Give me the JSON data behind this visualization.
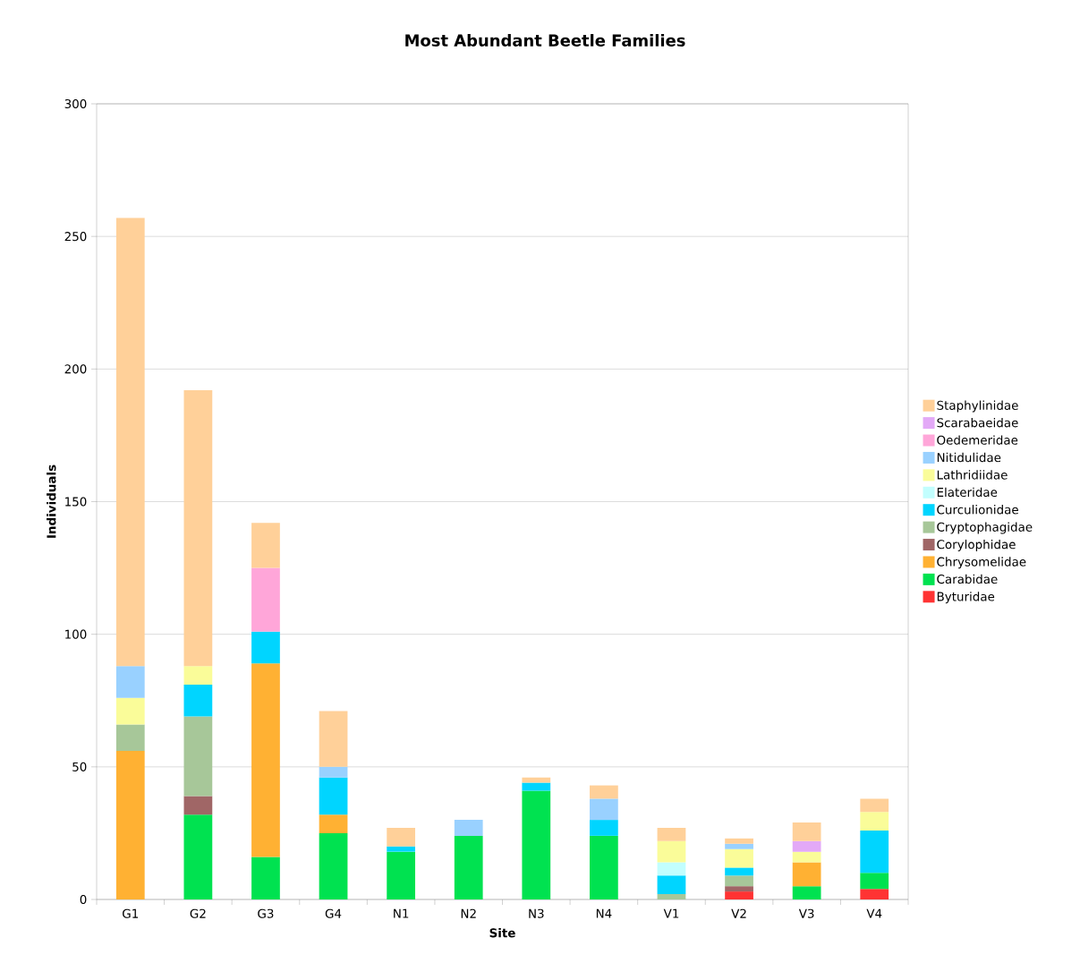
{
  "chart_data": {
    "type": "bar",
    "stacked": true,
    "title": "Most Abundant Beetle Families",
    "xlabel": "Site",
    "ylabel": "Individuals",
    "categories": [
      "G1",
      "G2",
      "G3",
      "G4",
      "N1",
      "N2",
      "N3",
      "N4",
      "V1",
      "V2",
      "V3",
      "V4"
    ],
    "ylim": [
      0,
      300
    ],
    "yticks": [
      0,
      50,
      100,
      150,
      200,
      250,
      300
    ],
    "grid": "y",
    "legend": "right",
    "series": [
      {
        "name": "Byturidae",
        "color": "#ff3333",
        "values": [
          null,
          null,
          null,
          null,
          null,
          null,
          null,
          null,
          null,
          3,
          null,
          4
        ]
      },
      {
        "name": "Carabidae",
        "color": "#00e250",
        "values": [
          null,
          32,
          16,
          25,
          18,
          24,
          41,
          24,
          null,
          null,
          5,
          6
        ]
      },
      {
        "name": "Chrysomelidae",
        "color": "#ffb133",
        "values": [
          56,
          null,
          73,
          7,
          null,
          null,
          null,
          null,
          null,
          null,
          9,
          null
        ]
      },
      {
        "name": "Corylophidae",
        "color": "#a06666",
        "values": [
          null,
          7,
          null,
          null,
          null,
          null,
          null,
          null,
          null,
          2,
          null,
          null
        ]
      },
      {
        "name": "Cryptophagidae",
        "color": "#a7c799",
        "values": [
          10,
          30,
          null,
          null,
          null,
          null,
          null,
          null,
          2,
          4,
          null,
          null
        ]
      },
      {
        "name": "Curculionidae",
        "color": "#00d5ff",
        "values": [
          null,
          12,
          12,
          14,
          2,
          null,
          3,
          6,
          7,
          3,
          null,
          16
        ]
      },
      {
        "name": "Elateridae",
        "color": "#c2fefe",
        "values": [
          null,
          null,
          null,
          null,
          null,
          null,
          null,
          null,
          5,
          null,
          null,
          null
        ]
      },
      {
        "name": "Lathridiidae",
        "color": "#fafc99",
        "values": [
          10,
          7,
          null,
          null,
          null,
          null,
          null,
          null,
          8,
          7,
          4,
          7
        ]
      },
      {
        "name": "Nitidulidae",
        "color": "#99d1ff",
        "values": [
          12,
          null,
          null,
          4,
          null,
          6,
          null,
          8,
          null,
          2,
          null,
          null
        ]
      },
      {
        "name": "Oedemeridae",
        "color": "#ffa6d9",
        "values": [
          null,
          null,
          24,
          null,
          null,
          null,
          null,
          null,
          null,
          null,
          null,
          null
        ]
      },
      {
        "name": "Scarabaeidae",
        "color": "#e3a9f7",
        "values": [
          null,
          null,
          null,
          null,
          null,
          null,
          null,
          null,
          null,
          null,
          4,
          null
        ]
      },
      {
        "name": "Staphylinidae",
        "color": "#ffd099",
        "values": [
          169,
          104,
          17,
          21,
          7,
          null,
          2,
          5,
          5,
          2,
          7,
          5
        ]
      }
    ]
  }
}
